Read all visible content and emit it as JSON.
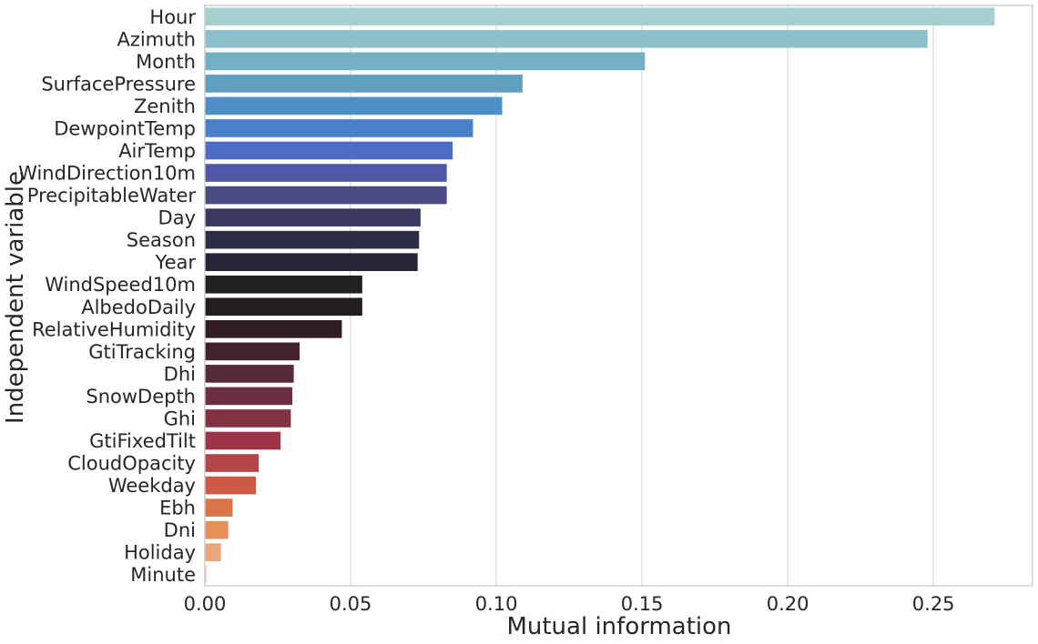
{
  "chart_data": {
    "type": "bar",
    "orientation": "horizontal",
    "xlabel": "Mutual information",
    "ylabel": "Independent variable",
    "xlim": [
      0,
      0.284
    ],
    "xticks": [
      0.0,
      0.05,
      0.1,
      0.15,
      0.2,
      0.25
    ],
    "xtick_labels": [
      "0.00",
      "0.05",
      "0.10",
      "0.15",
      "0.20",
      "0.25"
    ],
    "grid": "vertical",
    "categories": [
      "Hour",
      "Azimuth",
      "Month",
      "SurfacePressure",
      "Zenith",
      "DewpointTemp",
      "AirTemp",
      "WindDirection10m",
      "PrecipitableWater",
      "Day",
      "Season",
      "Year",
      "WindSpeed10m",
      "AlbedoDaily",
      "RelativeHumidity",
      "GtiTracking",
      "Dhi",
      "SnowDepth",
      "Ghi",
      "GtiFixedTilt",
      "CloudOpacity",
      "Weekday",
      "Ebh",
      "Dni",
      "Holiday",
      "Minute"
    ],
    "values": [
      0.271,
      0.248,
      0.151,
      0.109,
      0.102,
      0.092,
      0.085,
      0.083,
      0.083,
      0.074,
      0.0735,
      0.073,
      0.054,
      0.054,
      0.047,
      0.0325,
      0.0305,
      0.03,
      0.0295,
      0.026,
      0.0185,
      0.0175,
      0.0095,
      0.008,
      0.0055,
      0.0005
    ],
    "colors": [
      "#a6cfcf",
      "#8ec0cc",
      "#74b0c4",
      "#5f9fc0",
      "#4e8fc6",
      "#4a7fca",
      "#4b6cc4",
      "#5057a6",
      "#4a4a82",
      "#3a3862",
      "#2e2d48",
      "#262636",
      "#212124",
      "#221d20",
      "#2f1d22",
      "#42222c",
      "#57293a",
      "#6c2e42",
      "#833244",
      "#9c3646",
      "#b44648",
      "#cc5a45",
      "#d97548",
      "#e49056",
      "#eaa77a",
      "#e9c9b7"
    ]
  }
}
